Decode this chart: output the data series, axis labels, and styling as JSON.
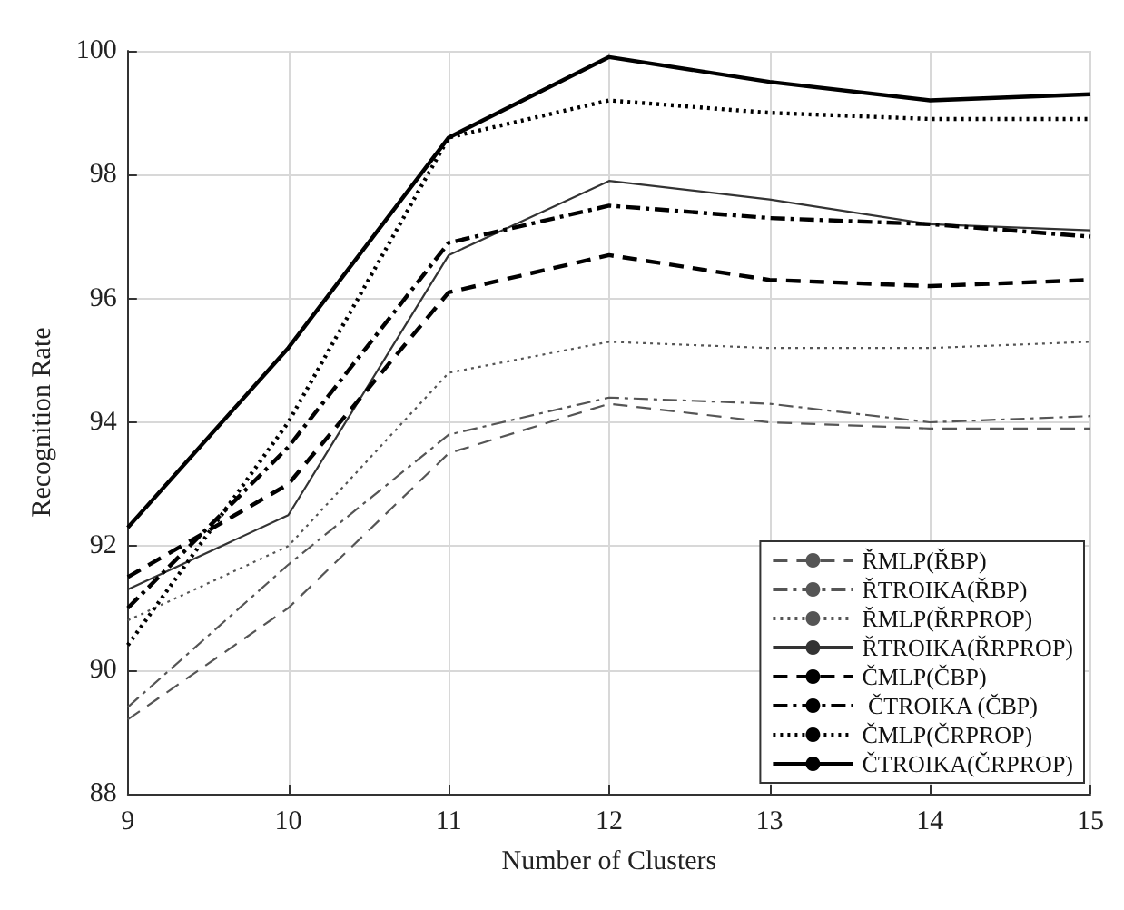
{
  "chart_data": {
    "type": "line",
    "xlabel": "Number of Clusters",
    "ylabel": "Recognition Rate",
    "x": [
      9,
      10,
      11,
      12,
      13,
      14,
      15
    ],
    "xlim": [
      9,
      15
    ],
    "xticks": [
      9,
      10,
      11,
      12,
      13,
      14,
      15
    ],
    "ylim": [
      88,
      100
    ],
    "yticks": [
      88,
      90,
      92,
      94,
      96,
      98,
      100
    ],
    "grid": true,
    "legend": "bottom right",
    "marker": "none",
    "series": [
      {
        "name": "ŘMLP(ŘBP)",
        "color": "#555555",
        "line_style": "dashed",
        "values": [
          89.2,
          91.0,
          93.5,
          94.3,
          94.0,
          93.9,
          93.9
        ]
      },
      {
        "name": "ŘTROIKA(ŘBP)",
        "color": "#555555",
        "line_style": "dashdot",
        "values": [
          89.4,
          91.7,
          93.8,
          94.4,
          94.3,
          94.0,
          94.1
        ]
      },
      {
        "name": "ŘMLP(ŘRPROP)",
        "color": "#555555",
        "line_style": "dotted",
        "values": [
          90.8,
          92.0,
          94.8,
          95.3,
          95.2,
          95.2,
          95.3
        ]
      },
      {
        "name": "ŘTROIKA(ŘRPROP)",
        "color": "#333333",
        "line_style": "solid",
        "values": [
          91.3,
          92.5,
          96.7,
          97.9,
          97.6,
          97.2,
          97.1
        ]
      },
      {
        "name": "ČMLP(ČBP)",
        "color": "#000000",
        "line_style": "dashed",
        "values": [
          91.5,
          93.0,
          96.1,
          96.7,
          96.3,
          96.2,
          96.3
        ]
      },
      {
        "name": " ČTROIKA (ČBP)",
        "color": "#000000",
        "line_style": "dashdot",
        "values": [
          91.0,
          93.6,
          96.9,
          97.5,
          97.3,
          97.2,
          97.0
        ]
      },
      {
        "name": "ČMLP(ČRPROP)",
        "color": "#000000",
        "line_style": "dotted",
        "values": [
          90.4,
          94.0,
          98.6,
          99.2,
          99.0,
          98.9,
          98.9
        ]
      },
      {
        "name": "ČTROIKA(ČRPROP)",
        "color": "#000000",
        "line_style": "solid",
        "values": [
          92.3,
          95.2,
          98.6,
          99.9,
          99.5,
          99.2,
          99.3
        ]
      }
    ]
  }
}
